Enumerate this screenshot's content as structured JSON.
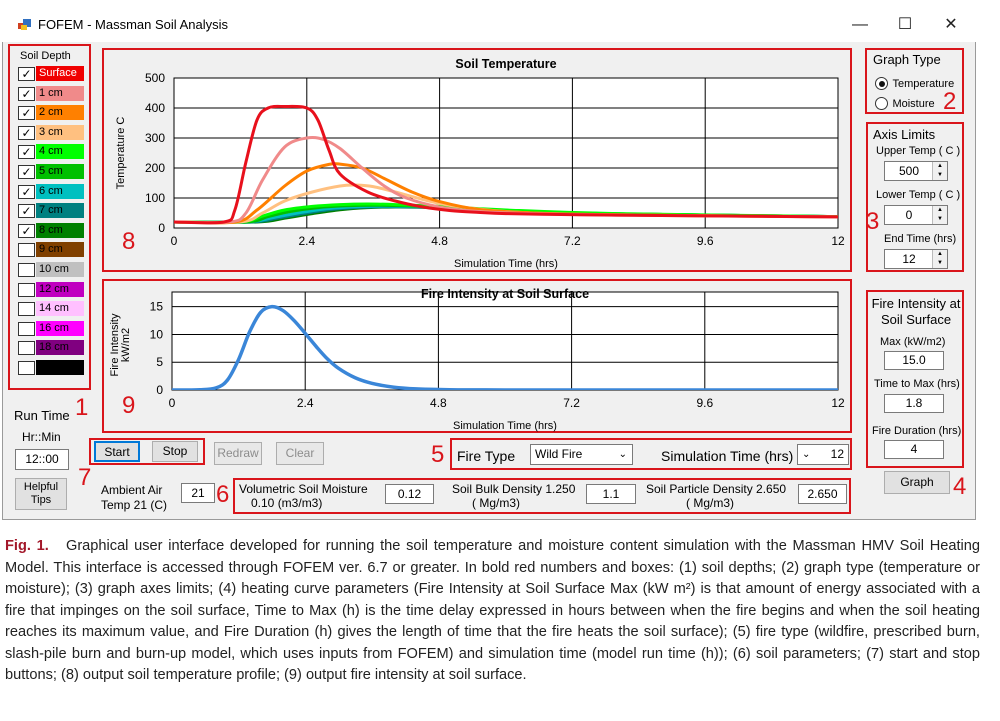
{
  "window": {
    "title": "FOFEM - Massman Soil Analysis",
    "minimize": "—",
    "maximize": "☐",
    "close": "✕"
  },
  "soil_depth": {
    "header": "Soil Depth",
    "items": [
      {
        "label": "Surface",
        "checked": true,
        "color": "#f00000"
      },
      {
        "label": "1 cm",
        "checked": true,
        "color": "#f08a8a"
      },
      {
        "label": "2 cm",
        "checked": true,
        "color": "#ff8000"
      },
      {
        "label": "3 cm",
        "checked": true,
        "color": "#ffc080"
      },
      {
        "label": "4 cm",
        "checked": true,
        "color": "#00ff00"
      },
      {
        "label": "5 cm",
        "checked": true,
        "color": "#00c000"
      },
      {
        "label": "6 cm",
        "checked": true,
        "color": "#00c0c0"
      },
      {
        "label": "7 cm",
        "checked": true,
        "color": "#008080"
      },
      {
        "label": "8 cm",
        "checked": true,
        "color": "#008000"
      },
      {
        "label": "9 cm",
        "checked": false,
        "color": "#804000"
      },
      {
        "label": "10 cm",
        "checked": false,
        "color": "#c0c0c0"
      },
      {
        "label": "12 cm",
        "checked": false,
        "color": "#c000c0"
      },
      {
        "label": "14 cm",
        "checked": false,
        "color": "#ffc0ff"
      },
      {
        "label": "16 cm",
        "checked": false,
        "color": "#ff00ff"
      },
      {
        "label": "18 cm",
        "checked": false,
        "color": "#800080"
      },
      {
        "label": "",
        "checked": false,
        "color": "#000000"
      }
    ]
  },
  "run_time": {
    "label": "Run Time",
    "format": "Hr::Min",
    "value": "12::00"
  },
  "buttons": {
    "helpful_tips": "Helpful Tips",
    "start": "Start",
    "stop": "Stop",
    "redraw": "Redraw",
    "clear": "Clear",
    "graph": "Graph"
  },
  "graph_type": {
    "title": "Graph Type",
    "options": [
      {
        "label": "Temperature",
        "selected": true
      },
      {
        "label": "Moisture",
        "selected": false
      }
    ]
  },
  "axis_limits": {
    "title": "Axis Limits",
    "upper_label": "Upper Temp ( C )",
    "upper": "500",
    "lower_label": "Lower Temp ( C )",
    "lower": "0",
    "end_label": "End Time (hrs)",
    "end": "12"
  },
  "fire_intensity_panel": {
    "title": "Fire Intensity at Soil Surface",
    "max_label": "Max  (kW/m2)",
    "max": "15.0",
    "time_label": "Time to Max (hrs)",
    "time": "1.8",
    "duration_label": "Fire Duration (hrs)",
    "duration": "4"
  },
  "fire_type": {
    "label": "Fire Type",
    "value": "Wild Fire",
    "sim_label": "Simulation Time (hrs)",
    "sim_value": "12"
  },
  "soil_params": {
    "ambient_label_1": "Ambient Air",
    "ambient_label_2": "Temp 21 (C)",
    "ambient": "21",
    "moisture_label_1": "Volumetric Soil Moisture",
    "moisture_label_2": "0.10   (m3/m3)",
    "moisture": "0.12",
    "bulk_label_1": "Soil Bulk Density 1.250",
    "bulk_label_2": "( Mg/m3)",
    "bulk": "1.1",
    "particle_label_1": "Soil Particle Density 2.650",
    "particle_label_2": "( Mg/m3)",
    "particle": "2.650"
  },
  "annotations": [
    "1",
    "2",
    "3",
    "4",
    "5",
    "6",
    "7",
    "8",
    "9"
  ],
  "charts_text": {
    "temp_title": "Soil Temperature",
    "temp_ylabel": "Temperature C",
    "temp_xlabel": "Simulation Time (hrs)",
    "fire_title": "Fire Intensity at Soil Surface",
    "fire_ylabel_1": "Fire Intensity",
    "fire_ylabel_2": "kW/m2",
    "fire_xlabel": "Simulation Time (hrs)"
  },
  "chart_data": [
    {
      "type": "line",
      "title": "Soil Temperature",
      "xlabel": "Simulation Time (hrs)",
      "ylabel": "Temperature C",
      "xlim": [
        0,
        12
      ],
      "ylim": [
        0,
        500
      ],
      "xticks": [
        "0",
        "2.4",
        "4.8",
        "7.2",
        "9.6",
        "12"
      ],
      "yticks": [
        "0",
        "100",
        "200",
        "300",
        "400",
        "500"
      ],
      "grid": true,
      "series": [
        {
          "color": "#e8101c",
          "width": 3,
          "x": [
            0,
            0.9,
            1.1,
            1.3,
            1.5,
            1.7,
            2.0,
            2.4,
            2.6,
            2.8,
            3.0,
            3.5,
            4.0,
            4.5,
            5.0,
            5.5,
            6.0,
            7.0,
            8.0,
            10.0,
            12.0
          ],
          "y": [
            20,
            20,
            60,
            220,
            360,
            400,
            405,
            400,
            360,
            260,
            180,
            120,
            90,
            70,
            58,
            52,
            48,
            45,
            43,
            40,
            37
          ]
        },
        {
          "color": "#f08a8a",
          "width": 3,
          "x": [
            0,
            1.0,
            1.3,
            1.6,
            2.0,
            2.4,
            2.7,
            3.0,
            3.4,
            3.8,
            4.2,
            4.8,
            5.5,
            6.5,
            8.0,
            12.0
          ],
          "y": [
            20,
            20,
            50,
            160,
            270,
            300,
            295,
            265,
            200,
            140,
            100,
            70,
            55,
            48,
            43,
            37
          ]
        },
        {
          "color": "#ff8000",
          "width": 3,
          "x": [
            0,
            1.1,
            1.5,
            2.0,
            2.4,
            2.8,
            3.0,
            3.4,
            3.8,
            4.3,
            4.8,
            5.5,
            6.5,
            8.0,
            12.0
          ],
          "y": [
            20,
            20,
            60,
            140,
            190,
            212,
            213,
            200,
            165,
            120,
            88,
            62,
            50,
            44,
            37
          ]
        },
        {
          "color": "#ffc080",
          "width": 3,
          "x": [
            0,
            1.2,
            1.6,
            2.0,
            2.5,
            3.0,
            3.3,
            3.6,
            4.0,
            4.5,
            5.0,
            6.0,
            7.5,
            12.0
          ],
          "y": [
            20,
            20,
            50,
            90,
            120,
            140,
            143,
            138,
            120,
            95,
            75,
            55,
            45,
            37
          ]
        },
        {
          "color": "#00ff00",
          "width": 3,
          "x": [
            0,
            1.2,
            1.6,
            2.0,
            2.5,
            3.0,
            3.5,
            4.0,
            4.8,
            6.0,
            8.0,
            12.0
          ],
          "y": [
            20,
            20,
            40,
            60,
            72,
            78,
            80,
            78,
            72,
            60,
            48,
            38
          ]
        },
        {
          "color": "#00c000",
          "width": 3,
          "x": [
            0,
            1.3,
            1.7,
            2.1,
            2.6,
            3.1,
            3.6,
            4.2,
            5.0,
            6.0,
            8.0,
            12.0
          ],
          "y": [
            20,
            20,
            38,
            55,
            68,
            74,
            76,
            74,
            68,
            58,
            47,
            38
          ]
        },
        {
          "color": "#00c0c0",
          "width": 3,
          "x": [
            0,
            1.3,
            1.8,
            2.3,
            2.8,
            3.3,
            3.8,
            4.3,
            5.0,
            6.0,
            8.0,
            12.0
          ],
          "y": [
            20,
            20,
            35,
            52,
            65,
            71,
            73,
            72,
            67,
            58,
            47,
            38
          ]
        },
        {
          "color": "#008080",
          "width": 3,
          "x": [
            0,
            1.4,
            1.9,
            2.4,
            2.9,
            3.4,
            3.9,
            4.4,
            5.0,
            6.0,
            8.0,
            12.0
          ],
          "y": [
            20,
            20,
            34,
            50,
            63,
            69,
            71,
            70,
            66,
            58,
            47,
            38
          ]
        },
        {
          "color": "#008000",
          "width": 3,
          "x": [
            0,
            1.5,
            2.0,
            2.5,
            3.0,
            3.5,
            4.0,
            4.5,
            5.2,
            6.0,
            8.0,
            12.0
          ],
          "y": [
            20,
            20,
            33,
            48,
            61,
            68,
            70,
            69,
            65,
            58,
            47,
            38
          ]
        }
      ]
    },
    {
      "type": "line",
      "title": "Fire Intensity at Soil Surface",
      "xlabel": "Simulation Time (hrs)",
      "ylabel": "Fire Intensity kW/m2",
      "xlim": [
        0,
        12
      ],
      "ylim": [
        0,
        17
      ],
      "xticks": [
        "0",
        "2.4",
        "4.8",
        "7.2",
        "9.6",
        "12"
      ],
      "yticks": [
        "0",
        "5",
        "10",
        "15"
      ],
      "grid": true,
      "series": [
        {
          "color": "#3a86d8",
          "width": 3.5,
          "x": [
            0,
            0.5,
            0.8,
            1.0,
            1.2,
            1.4,
            1.6,
            1.8,
            2.0,
            2.2,
            2.4,
            2.6,
            2.8,
            3.0,
            3.3,
            3.6,
            4.0,
            4.4,
            5.0,
            5.5,
            6.0,
            7.0,
            12.0
          ],
          "y": [
            0,
            0.05,
            0.4,
            1.8,
            5.5,
            10.5,
            14.0,
            15.0,
            14.3,
            12.5,
            10.2,
            7.8,
            5.6,
            3.9,
            2.2,
            1.2,
            0.5,
            0.2,
            0.05,
            0.02,
            0,
            0,
            0
          ]
        }
      ]
    }
  ],
  "caption": {
    "label": "Fig. 1.",
    "text": "Graphical user interface developed for running the soil temperature and moisture content simulation with the Massman HMV Soil Heating Model. This interface is accessed through FOFEM ver. 6.7 or greater. In bold red numbers and boxes: (1) soil depths; (2) graph type (temperature or moisture); (3) graph axes limits; (4) heating curve parameters (Fire Intensity at Soil Surface Max (kW m²) is that amount of energy associated with a fire that impinges on the soil surface, Time to Max (h) is the time delay expressed in hours between when the fire begins and when the soil heating reaches its maximum value, and Fire Duration (h) gives the length of time that the fire heats the soil surface); (5) fire type (wildfire, prescribed burn, slash-pile burn and burn-up model, which uses inputs from FOFEM) and simulation time (model run time (h)); (6) soil parameters; (7) start and stop buttons; (8) output soil temperature profile; (9) output fire intensity at soil surface."
  },
  "colors": {
    "annotation_red": "#d9151b",
    "caption_label": "#a3182a"
  }
}
